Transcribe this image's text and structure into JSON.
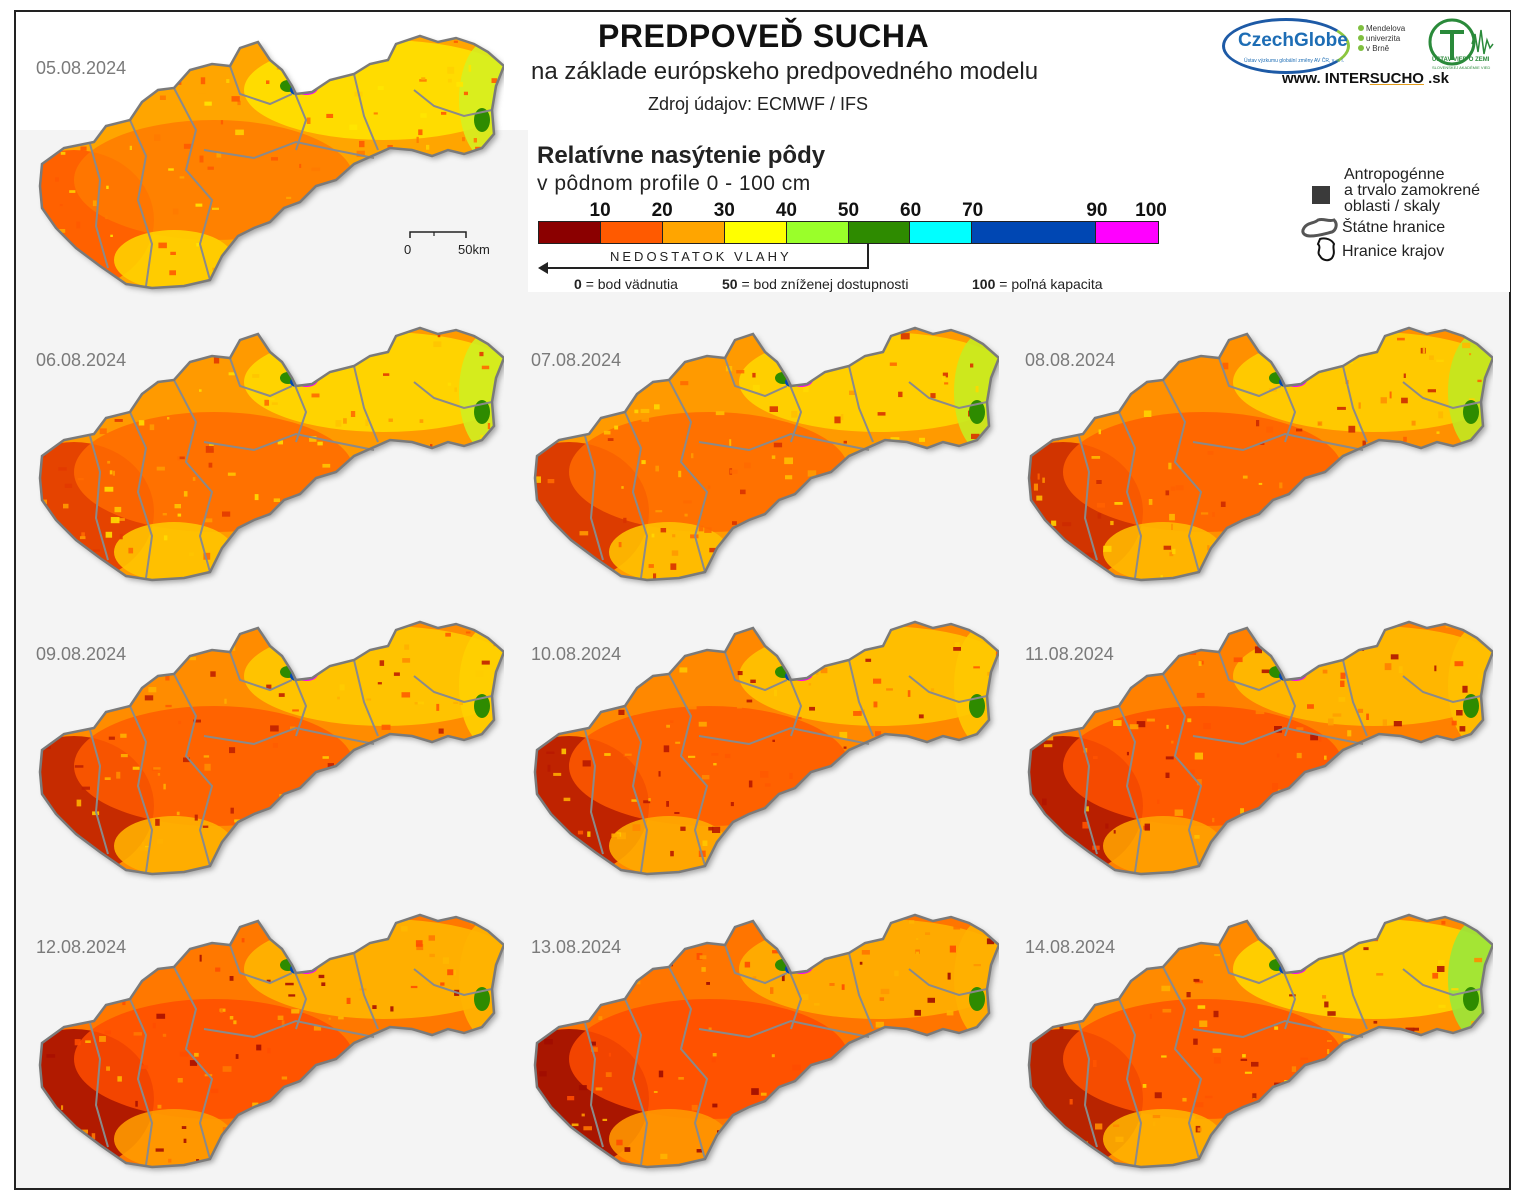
{
  "header": {
    "title": "PREDPOVEĎ SUCHA",
    "subtitle": "na základe európskeho predpovedného modelu",
    "source": "Zdroj údajov: ECMWF / IFS"
  },
  "logos": {
    "czechglobe_name": "CzechGlobe",
    "czechglobe_sub": "Ústav výzkumu globální změny AV ČR, v. v. i.",
    "mendel_lines": [
      "Mendelova",
      "univerzita",
      "v Brně"
    ],
    "uvz_name": "ÚSTAV VIED O ZEMI",
    "uvz_sub": "SLOVENSKEJ AKADÉMIE VIED",
    "website_prefix": "www. INTER",
    "website_brand": "SUCHO",
    "website_suffix": " .sk"
  },
  "legend": {
    "title": "Relatívne nasýtenie pôdy",
    "subtitle": "v pôdnom profile 0 - 100 cm",
    "ticks": [
      "10",
      "20",
      "30",
      "40",
      "50",
      "60",
      "70",
      "90",
      "100"
    ],
    "bins": [
      {
        "from": 0,
        "to": 10,
        "color": "#8b0000"
      },
      {
        "from": 10,
        "to": 20,
        "color": "#ff5a00"
      },
      {
        "from": 20,
        "to": 30,
        "color": "#ffa500"
      },
      {
        "from": 30,
        "to": 40,
        "color": "#ffff00"
      },
      {
        "from": 40,
        "to": 50,
        "color": "#9aff2a"
      },
      {
        "from": 50,
        "to": 60,
        "color": "#2e8b00"
      },
      {
        "from": 60,
        "to": 70,
        "color": "#00ffff"
      },
      {
        "from": 70,
        "to": 90,
        "color": "#0047b3"
      },
      {
        "from": 90,
        "to": 100,
        "color": "#ff00ff"
      }
    ],
    "deficit_label": "NEDOSTATOK VLAHY",
    "refs": [
      {
        "num": "0",
        "text": "= bod vädnutia"
      },
      {
        "num": "50",
        "text": "= bod zníženej dostupnosti"
      },
      {
        "num": "100",
        "text": "= poľná kapacita"
      }
    ],
    "side": {
      "anthropogenic": [
        "Antropogénne",
        "a trvalo zamokrené",
        "oblasti / skaly"
      ],
      "state_borders": "Štátne hranice",
      "region_borders": "Hranice krajov"
    },
    "scale": {
      "zero": "0",
      "distance": "50km"
    }
  },
  "maps": [
    {
      "date": "05.08.2024",
      "palette": [
        "#ff7a00",
        "#ffa500",
        "#ffd000",
        "#ffe500"
      ],
      "west": "#ff5a00",
      "east": "#d6f020"
    },
    {
      "date": "06.08.2024",
      "palette": [
        "#ff6a00",
        "#ff9a00",
        "#ffc400",
        "#ffdd00"
      ],
      "west": "#e23a00",
      "east": "#d0ee20"
    },
    {
      "date": "07.08.2024",
      "palette": [
        "#ff6a00",
        "#ff9a00",
        "#ffbf00",
        "#ffd800"
      ],
      "west": "#d83200",
      "east": "#c8ea20"
    },
    {
      "date": "08.08.2024",
      "palette": [
        "#ff6000",
        "#ff9000",
        "#ffb800",
        "#ffd400"
      ],
      "west": "#cc2a00",
      "east": "#c2e820"
    },
    {
      "date": "09.08.2024",
      "palette": [
        "#ff5c00",
        "#ff8c00",
        "#ffb000",
        "#ffcc00"
      ],
      "west": "#c02000",
      "east": "#ffd000"
    },
    {
      "date": "10.08.2024",
      "palette": [
        "#ff5a00",
        "#ff8800",
        "#ffaa00",
        "#ffc800"
      ],
      "west": "#b81800",
      "east": "#ffc800"
    },
    {
      "date": "11.08.2024",
      "palette": [
        "#ff5200",
        "#ff8000",
        "#ffa000",
        "#ffc000"
      ],
      "west": "#b01400",
      "east": "#ffc000"
    },
    {
      "date": "12.08.2024",
      "palette": [
        "#ff4e00",
        "#ff7800",
        "#ff9a00",
        "#ffb800"
      ],
      "west": "#a81000",
      "east": "#ffb400"
    },
    {
      "date": "13.08.2024",
      "palette": [
        "#ff4c00",
        "#ff7400",
        "#ff9600",
        "#ffb400"
      ],
      "west": "#a00c00",
      "east": "#ffb000"
    },
    {
      "date": "14.08.2024",
      "palette": [
        "#ff5400",
        "#ff8a00",
        "#ffb000",
        "#ffd800"
      ],
      "west": "#b01800",
      "east": "#9ae83a"
    }
  ]
}
